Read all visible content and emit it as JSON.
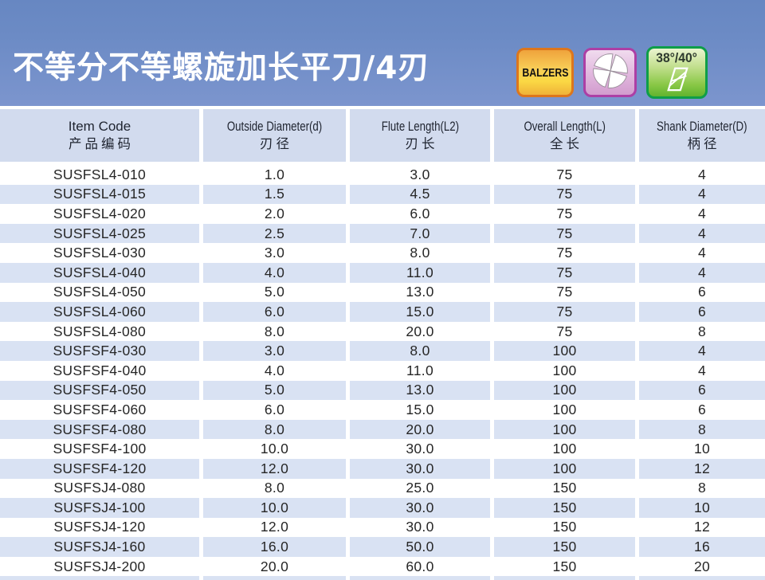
{
  "page": {
    "title": "不等分不等螺旋加长平刀/4刃"
  },
  "badges": {
    "balzers_label": "BALZERS",
    "cutter_icon": "end-mill-4-flute-icon",
    "angle_label": "38°/40°",
    "angle_icon": "helix-angle-icon"
  },
  "table": {
    "columns": [
      {
        "key": "item-code",
        "en": "Item Code",
        "zh": "产品编码"
      },
      {
        "key": "outside-diameter",
        "en": "Outside Diameter(d)",
        "zh": "刃径"
      },
      {
        "key": "flute-length",
        "en": "Flute Length(L2)",
        "zh": "刃长"
      },
      {
        "key": "overall-length",
        "en": "Overall Length(L)",
        "zh": "全长"
      },
      {
        "key": "shank-diameter",
        "en": "Shank Diameter(D)",
        "zh": "柄径"
      }
    ],
    "rows": [
      [
        "SUSFSL4-010",
        "1.0",
        "3.0",
        "75",
        "4"
      ],
      [
        "SUSFSL4-015",
        "1.5",
        "4.5",
        "75",
        "4"
      ],
      [
        "SUSFSL4-020",
        "2.0",
        "6.0",
        "75",
        "4"
      ],
      [
        "SUSFSL4-025",
        "2.5",
        "7.0",
        "75",
        "4"
      ],
      [
        "SUSFSL4-030",
        "3.0",
        "8.0",
        "75",
        "4"
      ],
      [
        "SUSFSL4-040",
        "4.0",
        "11.0",
        "75",
        "4"
      ],
      [
        "SUSFSL4-050",
        "5.0",
        "13.0",
        "75",
        "6"
      ],
      [
        "SUSFSL4-060",
        "6.0",
        "15.0",
        "75",
        "6"
      ],
      [
        "SUSFSL4-080",
        "8.0",
        "20.0",
        "75",
        "8"
      ],
      [
        "SUSFSF4-030",
        "3.0",
        "8.0",
        "100",
        "4"
      ],
      [
        "SUSFSF4-040",
        "4.0",
        "11.0",
        "100",
        "4"
      ],
      [
        "SUSFSF4-050",
        "5.0",
        "13.0",
        "100",
        "6"
      ],
      [
        "SUSFSF4-060",
        "6.0",
        "15.0",
        "100",
        "6"
      ],
      [
        "SUSFSF4-080",
        "8.0",
        "20.0",
        "100",
        "8"
      ],
      [
        "SUSFSF4-100",
        "10.0",
        "30.0",
        "100",
        "10"
      ],
      [
        "SUSFSF4-120",
        "12.0",
        "30.0",
        "100",
        "12"
      ],
      [
        "SUSFSJ4-080",
        "8.0",
        "25.0",
        "150",
        "8"
      ],
      [
        "SUSFSJ4-100",
        "10.0",
        "30.0",
        "150",
        "10"
      ],
      [
        "SUSFSJ4-120",
        "12.0",
        "30.0",
        "150",
        "12"
      ],
      [
        "SUSFSJ4-160",
        "16.0",
        "50.0",
        "150",
        "16"
      ],
      [
        "SUSFSJ4-200",
        "20.0",
        "60.0",
        "150",
        "20"
      ]
    ]
  },
  "colors": {
    "hero_blue_top": "#6787C2",
    "hero_blue_bottom": "#7C95CE",
    "title_color": "#FFFFFF",
    "header_cell_bg": "#D2DBEE",
    "row_bg": "#FFFFFF",
    "row_alt_bg": "#D9E2F3",
    "text_dark": "#262626",
    "balzers_border": "#DD761C",
    "cutter_border": "#AC3FA5",
    "angle_border": "#0E9E48"
  }
}
